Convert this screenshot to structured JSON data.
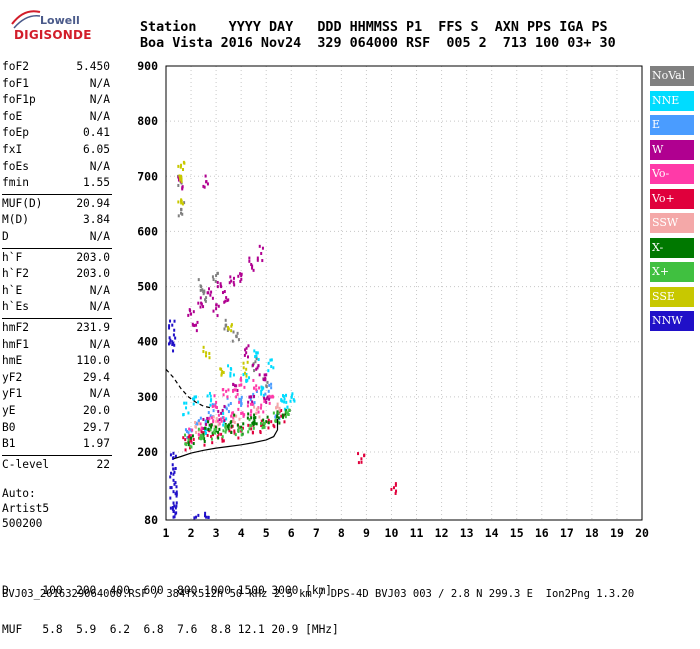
{
  "logo": {
    "line1": "Lowell",
    "line2": "DIGISONDE"
  },
  "header": {
    "line1": "Station    YYYY DAY   DDD HHMMSS P1  FFS S  AXN PPS IGA PS",
    "line2": "Boa Vista 2016 Nov24  329 064000 RSF  005 2  713 100 03+ 30"
  },
  "params": [
    {
      "label": "foF2",
      "value": "5.450"
    },
    {
      "label": "foF1",
      "value": "N/A"
    },
    {
      "label": "foF1p",
      "value": "N/A"
    },
    {
      "label": "foE",
      "value": "N/A"
    },
    {
      "label": "foEp",
      "value": "0.41"
    },
    {
      "label": "fxI",
      "value": "6.05"
    },
    {
      "label": "foEs",
      "value": "N/A"
    },
    {
      "label": "fmin",
      "value": "1.55"
    },
    {
      "label": "MUF(D)",
      "value": "20.94"
    },
    {
      "label": "M(D)",
      "value": "3.84"
    },
    {
      "label": "D",
      "value": "N/A"
    },
    {
      "label": "h`F",
      "value": "203.0"
    },
    {
      "label": "h`F2",
      "value": "203.0"
    },
    {
      "label": "h`E",
      "value": "N/A"
    },
    {
      "label": "h`Es",
      "value": "N/A"
    },
    {
      "label": "hmF2",
      "value": "231.9"
    },
    {
      "label": "hmF1",
      "value": "N/A"
    },
    {
      "label": "hmE",
      "value": "110.0"
    },
    {
      "label": "yF2",
      "value": "29.4"
    },
    {
      "label": "yF1",
      "value": "N/A"
    },
    {
      "label": "yE",
      "value": "20.0"
    },
    {
      "label": "B0",
      "value": "29.7"
    },
    {
      "label": "B1",
      "value": "1.97"
    },
    {
      "label": "C-level",
      "value": "22"
    }
  ],
  "auto": {
    "line1": "Auto:",
    "line2": "Artist5",
    "line3": "500200"
  },
  "legend": [
    {
      "label": "NoVal",
      "color": "#808080"
    },
    {
      "label": "NNE",
      "color": "#00dcff"
    },
    {
      "label": "E",
      "color": "#4a9cff"
    },
    {
      "label": "W",
      "color": "#b00090"
    },
    {
      "label": "Vo-",
      "color": "#ff3aa8"
    },
    {
      "label": "Vo+",
      "color": "#e0003c"
    },
    {
      "label": "SSW",
      "color": "#f4a8a8"
    },
    {
      "label": "X-",
      "color": "#007800"
    },
    {
      "label": "X+",
      "color": "#40c040"
    },
    {
      "label": "SSE",
      "color": "#c8c800"
    },
    {
      "label": "NNW",
      "color": "#2010c8"
    }
  ],
  "bottom": {
    "line1": "D     100  200  400  600  800 1000 1500 3000 [km]",
    "line2": "MUF   5.8  5.9  6.2  6.8  7.6  8.8 12.1 20.9 [MHz]"
  },
  "footer": "BVJ03_2016329064000.RSF / 384fx512h 50 kHz 2.5 km / DPS-4D BVJ03 003 / 2.8 N 299.3 E  Ion2Png 1.3.20",
  "chart_data": {
    "type": "scatter",
    "xlim": [
      1,
      20
    ],
    "ylim": [
      80,
      900
    ],
    "xticks": [
      1,
      2,
      3,
      4,
      5,
      6,
      7,
      8,
      9,
      10,
      11,
      12,
      13,
      14,
      15,
      16,
      17,
      18,
      19,
      20
    ],
    "yticks": [
      80,
      200,
      300,
      400,
      500,
      600,
      700,
      800,
      900
    ],
    "grid": "dotted",
    "series": [
      {
        "name": "NoVal",
        "points": [
          [
            1.6,
            690
          ],
          [
            1.6,
            640
          ],
          [
            2.4,
            500
          ],
          [
            2.6,
            480
          ],
          [
            3.0,
            520
          ],
          [
            3.4,
            430
          ],
          [
            4.5,
            360
          ],
          [
            5.0,
            320
          ],
          [
            3.8,
            410
          ]
        ]
      },
      {
        "name": "NNE",
        "points": [
          [
            1.8,
            280
          ],
          [
            2.2,
            300
          ],
          [
            2.8,
            295
          ],
          [
            3.4,
            260
          ],
          [
            4.2,
            330
          ],
          [
            4.8,
            305
          ],
          [
            5.6,
            295
          ],
          [
            5.8,
            290
          ],
          [
            6.1,
            295
          ],
          [
            2.6,
            240
          ],
          [
            3.6,
            350
          ],
          [
            4.6,
            380
          ],
          [
            5.2,
            355
          ]
        ]
      },
      {
        "name": "E",
        "points": [
          [
            1.9,
            235
          ],
          [
            2.3,
            255
          ],
          [
            2.9,
            275
          ],
          [
            3.5,
            285
          ],
          [
            4.0,
            295
          ],
          [
            4.5,
            300
          ],
          [
            5.1,
            310
          ],
          [
            5.5,
            270
          ],
          [
            2.7,
            260
          ]
        ]
      },
      {
        "name": "W",
        "points": [
          [
            2.0,
            450
          ],
          [
            2.4,
            470
          ],
          [
            2.8,
            490
          ],
          [
            3.2,
            500
          ],
          [
            3.6,
            510
          ],
          [
            4.0,
            520
          ],
          [
            4.4,
            540
          ],
          [
            4.8,
            560
          ],
          [
            2.2,
            430
          ],
          [
            3.0,
            460
          ],
          [
            3.4,
            480
          ],
          [
            4.2,
            380
          ],
          [
            4.6,
            350
          ],
          [
            5.0,
            340
          ],
          [
            3.8,
            320
          ],
          [
            4.4,
            300
          ],
          [
            5.0,
            290
          ],
          [
            3.2,
            270
          ],
          [
            2.6,
            250
          ],
          [
            1.6,
            690
          ],
          [
            2.6,
            690
          ]
        ]
      },
      {
        "name": "Vo-",
        "points": [
          [
            2.0,
            230
          ],
          [
            2.4,
            240
          ],
          [
            2.8,
            250
          ],
          [
            3.2,
            260
          ],
          [
            3.6,
            265
          ],
          [
            4.0,
            270
          ],
          [
            4.4,
            275
          ],
          [
            4.8,
            285
          ],
          [
            5.2,
            300
          ],
          [
            3.0,
            290
          ],
          [
            3.8,
            300
          ],
          [
            4.6,
            320
          ],
          [
            4.0,
            330
          ],
          [
            3.4,
            310
          ]
        ]
      },
      {
        "name": "Vo+",
        "points": [
          [
            1.8,
            215
          ],
          [
            2.0,
            220
          ],
          [
            2.4,
            225
          ],
          [
            2.8,
            228
          ],
          [
            3.2,
            232
          ],
          [
            3.6,
            236
          ],
          [
            4.0,
            238
          ],
          [
            4.4,
            242
          ],
          [
            4.8,
            248
          ],
          [
            5.2,
            255
          ],
          [
            5.6,
            265
          ],
          [
            8.8,
            188
          ],
          [
            10.1,
            137
          ]
        ]
      },
      {
        "name": "SSW",
        "points": [
          [
            2.2,
            245
          ],
          [
            3.0,
            255
          ],
          [
            3.8,
            265
          ],
          [
            4.6,
            270
          ],
          [
            5.4,
            280
          ]
        ]
      },
      {
        "name": "X-",
        "points": [
          [
            2.0,
            225
          ],
          [
            2.5,
            232
          ],
          [
            3.0,
            238
          ],
          [
            3.5,
            242
          ],
          [
            4.0,
            245
          ],
          [
            4.5,
            250
          ],
          [
            5.0,
            255
          ],
          [
            5.5,
            262
          ],
          [
            5.8,
            275
          ],
          [
            2.8,
            245
          ],
          [
            3.6,
            255
          ],
          [
            4.4,
            262
          ]
        ]
      },
      {
        "name": "X+",
        "points": [
          [
            1.9,
            222
          ],
          [
            2.4,
            230
          ],
          [
            2.9,
            236
          ],
          [
            3.4,
            240
          ],
          [
            3.9,
            244
          ],
          [
            4.4,
            248
          ],
          [
            4.9,
            252
          ],
          [
            5.4,
            258
          ],
          [
            5.9,
            268
          ]
        ]
      },
      {
        "name": "SSE",
        "points": [
          [
            1.6,
            720
          ],
          [
            1.6,
            700
          ],
          [
            1.6,
            655
          ],
          [
            2.6,
            380
          ],
          [
            3.2,
            350
          ],
          [
            4.2,
            350
          ],
          [
            3.6,
            420
          ]
        ]
      },
      {
        "name": "NNW",
        "points": [
          [
            1.3,
            190
          ],
          [
            1.3,
            170
          ],
          [
            1.3,
            150
          ],
          [
            1.3,
            130
          ],
          [
            1.3,
            110
          ],
          [
            1.3,
            95
          ],
          [
            1.3,
            85
          ],
          [
            1.25,
            430
          ],
          [
            1.25,
            400
          ],
          [
            1.25,
            395
          ],
          [
            2.2,
            85
          ],
          [
            2.6,
            85
          ]
        ]
      }
    ],
    "profile_solid": [
      [
        1.3,
        188
      ],
      [
        1.6,
        192
      ],
      [
        2.0,
        198
      ],
      [
        2.5,
        203
      ],
      [
        3.0,
        207
      ],
      [
        3.5,
        210
      ],
      [
        4.0,
        213
      ],
      [
        4.5,
        217
      ],
      [
        5.0,
        222
      ],
      [
        5.3,
        228
      ],
      [
        5.45,
        240
      ],
      [
        5.45,
        260
      ]
    ],
    "profile_dashed": [
      [
        1.0,
        350
      ],
      [
        1.3,
        335
      ],
      [
        1.6,
        315
      ],
      [
        1.9,
        300
      ],
      [
        2.2,
        290
      ],
      [
        2.5,
        283
      ],
      [
        2.8,
        280
      ]
    ]
  }
}
